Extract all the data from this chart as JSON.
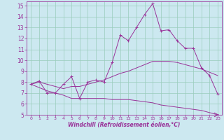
{
  "title": "",
  "xlabel": "Windchill (Refroidissement éolien,°C)",
  "ylabel": "",
  "background_color": "#cce8f0",
  "grid_color": "#99ccbb",
  "line_color": "#993399",
  "xlim": [
    -0.5,
    23.5
  ],
  "ylim": [
    5,
    15.4
  ],
  "xticks": [
    0,
    1,
    2,
    3,
    4,
    5,
    6,
    7,
    8,
    9,
    10,
    11,
    12,
    13,
    14,
    15,
    16,
    17,
    18,
    19,
    20,
    21,
    22,
    23
  ],
  "yticks": [
    5,
    6,
    7,
    8,
    9,
    10,
    11,
    12,
    13,
    14,
    15
  ],
  "line1_x": [
    0,
    1,
    2,
    3,
    4,
    5,
    6,
    7,
    8,
    9,
    10,
    11,
    12,
    13,
    14,
    15,
    16,
    17,
    18,
    19,
    20,
    21,
    22,
    23
  ],
  "line1_y": [
    7.8,
    8.1,
    7.0,
    7.0,
    7.8,
    8.5,
    6.5,
    8.0,
    8.2,
    8.0,
    9.8,
    12.3,
    11.8,
    13.0,
    14.2,
    15.2,
    12.7,
    12.8,
    11.8,
    11.1,
    11.1,
    9.3,
    8.6,
    6.9
  ],
  "line2_x": [
    0,
    1,
    2,
    3,
    4,
    5,
    6,
    7,
    8,
    9,
    10,
    11,
    12,
    13,
    14,
    15,
    16,
    17,
    18,
    19,
    20,
    21,
    22,
    23
  ],
  "line2_y": [
    7.8,
    8.0,
    7.8,
    7.6,
    7.4,
    7.6,
    7.6,
    7.8,
    8.0,
    8.2,
    8.5,
    8.8,
    9.0,
    9.3,
    9.6,
    9.9,
    9.9,
    9.9,
    9.8,
    9.6,
    9.4,
    9.2,
    8.9,
    8.6
  ],
  "line3_x": [
    0,
    1,
    2,
    3,
    4,
    5,
    6,
    7,
    8,
    9,
    10,
    11,
    12,
    13,
    14,
    15,
    16,
    17,
    18,
    19,
    20,
    21,
    22,
    23
  ],
  "line3_y": [
    7.8,
    7.5,
    7.2,
    7.0,
    6.8,
    6.5,
    6.5,
    6.5,
    6.5,
    6.5,
    6.4,
    6.4,
    6.4,
    6.3,
    6.2,
    6.1,
    5.9,
    5.8,
    5.7,
    5.6,
    5.5,
    5.4,
    5.2,
    5.0
  ]
}
